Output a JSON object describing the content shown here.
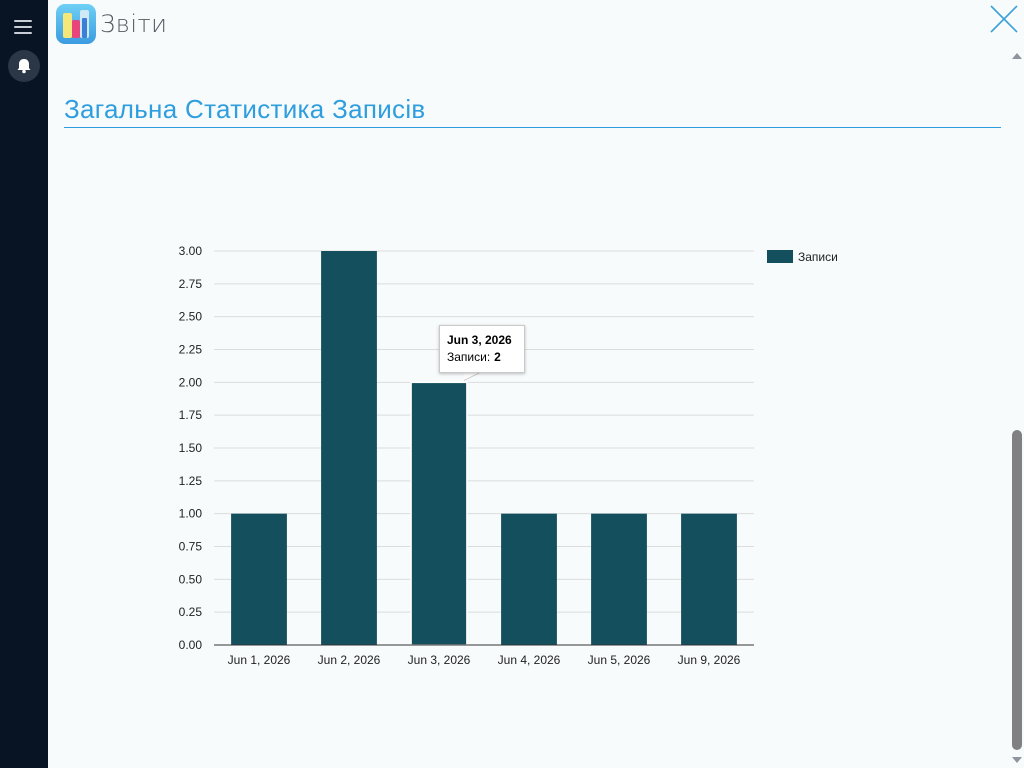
{
  "app": {
    "title": "Звіти",
    "icons": {
      "menu": "hamburger-menu-icon",
      "notifications": "bell-icon",
      "app": "bar-chart-app-icon",
      "close": "close-icon"
    }
  },
  "section": {
    "title": "Загальна Статистика Записів"
  },
  "colors": {
    "rail": "#081424",
    "accent": "#2f9ede",
    "bar": "#134f5c",
    "background": "#f7fbfc"
  },
  "tooltip": {
    "title": "Jun 3, 2026",
    "series_label": "Записи:",
    "value": "2"
  },
  "chart_data": {
    "type": "bar",
    "title": "",
    "xlabel": "",
    "ylabel": "",
    "categories": [
      "Jun 1, 2026",
      "Jun 2, 2026",
      "Jun 3, 2026",
      "Jun 4, 2026",
      "Jun 5, 2026",
      "Jun 9, 2026"
    ],
    "series": [
      {
        "name": "Записи",
        "values": [
          1,
          3,
          2,
          1,
          1,
          1
        ],
        "color": "#134f5c"
      }
    ],
    "ylim": [
      0,
      3
    ],
    "yticks": [
      "0.00",
      "0.25",
      "0.50",
      "0.75",
      "1.00",
      "1.25",
      "1.50",
      "1.75",
      "2.00",
      "2.25",
      "2.50",
      "2.75",
      "3.00"
    ],
    "grid": true,
    "legend": "right"
  }
}
